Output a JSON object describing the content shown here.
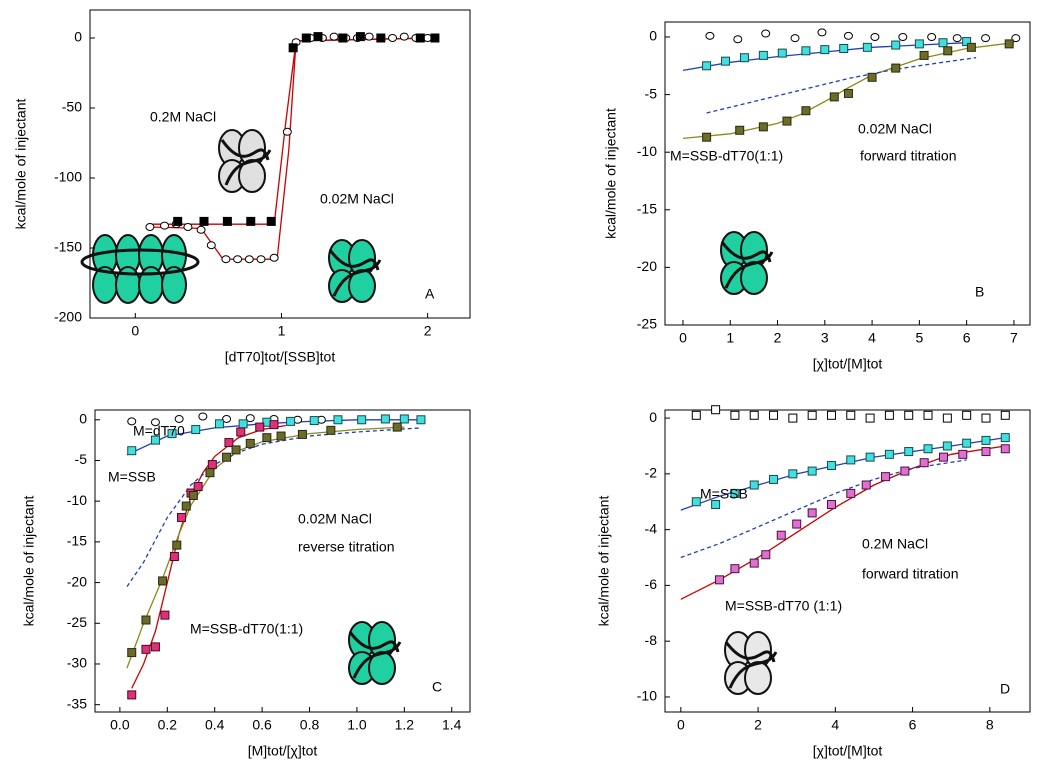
{
  "chart_data": [
    {
      "type": "scatter",
      "xlabel": "[dT70]tot/[SSB]tot",
      "ylabel": "kcal/mole of injectant",
      "xlim": [
        -0.31,
        2.29
      ],
      "ylim": [
        -200,
        20
      ],
      "xticks": [
        0,
        1,
        2
      ],
      "yticks": [
        0,
        -50,
        -100,
        -150,
        -200
      ],
      "annotations": [
        "0.2M NaCl",
        "0.02M NaCl",
        "A"
      ],
      "annotation_colors": [
        "#909090",
        "#2ed1b0",
        "#000000"
      ],
      "series": [
        {
          "style": "line",
          "color": "#cc0000",
          "x": [
            0.1,
            0.45,
            0.6,
            0.97,
            1.05,
            1.1,
            2.05
          ],
          "values": [
            -135,
            -136,
            -158,
            -158,
            -80,
            -2,
            0
          ]
        },
        {
          "style": "line",
          "color": "#cc0000",
          "x": [
            0.1,
            0.95,
            1.03,
            1.1,
            2.05
          ],
          "values": [
            -133,
            -133,
            -60,
            -2,
            0
          ]
        },
        {
          "style": "marker",
          "marker": "circle",
          "color": "#000000",
          "fill": "#ffffff",
          "x": [
            0.1,
            0.2,
            0.28,
            0.36,
            0.45,
            0.52,
            0.62,
            0.7,
            0.78,
            0.86,
            0.95,
            1.04,
            1.1,
            1.2,
            1.28,
            1.36,
            1.44,
            1.52,
            1.6,
            1.68,
            1.76,
            1.84,
            1.92,
            2.0
          ],
          "values": [
            -135,
            -134,
            -133,
            -135,
            -137,
            -148,
            -158,
            -158,
            -158,
            -158,
            -157,
            -67,
            -3,
            0,
            0,
            1,
            0,
            0,
            1,
            0,
            0,
            1,
            0,
            0
          ]
        },
        {
          "style": "marker",
          "marker": "square",
          "color": "#000000",
          "fill": "#000000",
          "x": [
            0.29,
            0.47,
            0.63,
            0.79,
            0.93,
            1.08,
            1.17,
            1.25,
            1.42,
            1.54,
            1.68,
            1.95,
            2.05
          ],
          "values": [
            -131,
            -131,
            -131,
            -131,
            -131,
            -7,
            0,
            1,
            0,
            1,
            0,
            0,
            0
          ]
        }
      ]
    },
    {
      "type": "scatter",
      "xlabel": "[χ]tot/[M]tot",
      "ylabel": "kcal/mole of injectant",
      "xlim": [
        -0.38,
        7.34
      ],
      "ylim": [
        -25,
        1.3
      ],
      "xticks": [
        0,
        1,
        2,
        3,
        4,
        5,
        6,
        7
      ],
      "yticks": [
        0,
        -5,
        -10,
        -15,
        -20,
        -25
      ],
      "annotations": [
        "0.02M NaCl",
        "forward titration",
        "M=SSB-dT70(1:1)",
        "B"
      ],
      "annotation_colors": [
        "#000000",
        "#000000",
        "#000000",
        "#000000"
      ],
      "series": [
        {
          "style": "line",
          "color": "#8a8a1a",
          "x": [
            0,
            1,
            2,
            2.5,
            3,
            3.5,
            4,
            5,
            6,
            7
          ],
          "values": [
            -8.8,
            -8.4,
            -7.5,
            -6.7,
            -5.6,
            -4.4,
            -3.3,
            -1.9,
            -1.0,
            -0.5
          ]
        },
        {
          "style": "line",
          "color": "#1f3fbf",
          "x": [
            0,
            1,
            2,
            3,
            4,
            5,
            6
          ],
          "values": [
            -2.9,
            -2.2,
            -1.7,
            -1.3,
            -0.9,
            -0.7,
            -0.5
          ]
        },
        {
          "style": "dashed",
          "color": "#1f3fbf",
          "x": [
            0.5,
            1.5,
            2.5,
            3.5,
            4.5,
            5.5,
            6.2
          ],
          "values": [
            -6.6,
            -5.6,
            -4.6,
            -3.6,
            -2.8,
            -2.2,
            -1.8
          ]
        },
        {
          "style": "marker",
          "marker": "circle",
          "color": "#000000",
          "fill": "#ffffff",
          "x": [
            0.57,
            1.16,
            1.75,
            2.37,
            2.94,
            3.5,
            4.06,
            4.65,
            5.26,
            5.8,
            6.4,
            7.04
          ],
          "values": [
            0.1,
            -0.2,
            0.3,
            -0.1,
            0.4,
            0.1,
            0,
            0,
            0,
            -0.1,
            -0.1,
            -0.1
          ]
        },
        {
          "style": "marker",
          "marker": "square",
          "color": "#1a4a4a",
          "fill": "#40e0e0",
          "x": [
            0.5,
            0.9,
            1.3,
            1.7,
            2.1,
            2.6,
            3.0,
            3.4,
            3.9,
            4.5,
            5.0,
            5.5,
            6.0
          ],
          "values": [
            -2.5,
            -2.1,
            -1.8,
            -1.6,
            -1.4,
            -1.2,
            -1.1,
            -1.0,
            -0.9,
            -0.7,
            -0.6,
            -0.5,
            -0.4
          ]
        },
        {
          "style": "marker",
          "marker": "square",
          "color": "#2a2a10",
          "fill": "#6b6b2a",
          "x": [
            0.5,
            1.2,
            1.7,
            2.2,
            2.6,
            3.2,
            3.5,
            4.0,
            4.5,
            5.1,
            5.6,
            6.1,
            6.9
          ],
          "values": [
            -8.7,
            -8.1,
            -7.8,
            -7.3,
            -6.4,
            -5.2,
            -4.9,
            -3.5,
            -2.7,
            -1.6,
            -1.2,
            -0.9,
            -0.6
          ]
        }
      ]
    },
    {
      "type": "scatter",
      "xlabel": "[M]tot/[χ]tot",
      "ylabel": "kcal/mole of injectant",
      "xlim": [
        -0.105,
        1.477
      ],
      "ylim": [
        -35.9,
        1.2
      ],
      "xticks": [
        {
          "value": 0,
          "label": "0.0"
        },
        0.2,
        0.4,
        0.6,
        0.8,
        {
          "value": 1,
          "label": "1.0"
        },
        1.2,
        1.4
      ],
      "yticks": [
        0,
        -5,
        -10,
        -15,
        -20,
        -25,
        -30,
        -35
      ],
      "annotations": [
        "M=dT70",
        "M=SSB",
        "0.02M NaCl",
        "reverse titration",
        "M=SSB-dT70(1:1)",
        "C"
      ],
      "annotation_colors": [
        "#000000",
        "#000000",
        "#000000",
        "#000000",
        "#000000",
        "#000000"
      ],
      "series": [
        {
          "style": "line",
          "color": "#cc0000",
          "x": [
            0.05,
            0.1,
            0.15,
            0.2,
            0.25,
            0.3,
            0.35,
            0.4,
            0.5,
            0.6,
            0.7
          ],
          "values": [
            -33,
            -30,
            -26,
            -20,
            -14,
            -9.5,
            -6.5,
            -4.5,
            -2.2,
            -1.2,
            -0.7
          ]
        },
        {
          "style": "line",
          "color": "#8a8a1a",
          "x": [
            0.03,
            0.1,
            0.18,
            0.25,
            0.3,
            0.4,
            0.5,
            0.6,
            0.8,
            1.0,
            1.2
          ],
          "values": [
            -30.5,
            -25,
            -19.5,
            -14,
            -10.5,
            -6,
            -3.8,
            -2.7,
            -1.7,
            -1.2,
            -0.9
          ]
        },
        {
          "style": "line",
          "color": "#1f3fbf",
          "x": [
            0.03,
            0.2,
            0.4,
            0.6,
            0.8,
            1.0,
            1.27
          ],
          "values": [
            -4.3,
            -2.0,
            -1.0,
            -0.5,
            -0.2,
            0,
            0
          ]
        },
        {
          "style": "dashed",
          "color": "#1f3fbf",
          "x": [
            0.03,
            0.1,
            0.2,
            0.3,
            0.4,
            0.5,
            0.6,
            0.8,
            1.0,
            1.27
          ],
          "values": [
            -20.5,
            -17.5,
            -12,
            -8,
            -5.5,
            -4,
            -3,
            -2,
            -1.5,
            -1
          ]
        },
        {
          "style": "marker",
          "marker": "circle",
          "color": "#000000",
          "fill": "#ffffff",
          "x": [
            0.05,
            0.15,
            0.25,
            0.35,
            0.45,
            0.55,
            0.65,
            0.75,
            0.85
          ],
          "values": [
            -0.2,
            -0.3,
            0.1,
            0.4,
            0.1,
            0.2,
            0.1,
            0,
            0
          ]
        },
        {
          "style": "marker",
          "marker": "square",
          "color": "#1a4a4a",
          "fill": "#40e0e0",
          "x": [
            0.05,
            0.15,
            0.22,
            0.32,
            0.42,
            0.52,
            0.62,
            0.72,
            0.82,
            0.92,
            1.02,
            1.12,
            1.2,
            1.27
          ],
          "values": [
            -3.8,
            -2.5,
            -1.7,
            -1.2,
            -0.5,
            -0.5,
            -0.3,
            -0.2,
            -0.1,
            0,
            0,
            0.1,
            0.1,
            0
          ]
        },
        {
          "style": "marker",
          "marker": "square",
          "color": "#4a0a20",
          "fill": "#e0307a",
          "x": [
            0.05,
            0.11,
            0.15,
            0.19,
            0.23,
            0.26,
            0.3,
            0.33,
            0.39,
            0.46,
            0.51,
            0.59,
            0.65
          ],
          "values": [
            -33.8,
            -28.2,
            -27.9,
            -24,
            -16.8,
            -12,
            -9,
            -8.2,
            -5.5,
            -2.8,
            -1.5,
            -0.9,
            -0.6
          ]
        },
        {
          "style": "marker",
          "marker": "square",
          "color": "#2a2a10",
          "fill": "#6b6b2a",
          "x": [
            0.05,
            0.11,
            0.18,
            0.24,
            0.28,
            0.31,
            0.38,
            0.45,
            0.49,
            0.55,
            0.62,
            0.68,
            0.77,
            0.89,
            1.17
          ],
          "values": [
            -28.6,
            -24.6,
            -19.8,
            -15.4,
            -10.6,
            -9.3,
            -6.5,
            -4.6,
            -3.7,
            -2.9,
            -2.2,
            -2,
            -1.8,
            -1.3,
            -0.9
          ]
        }
      ]
    },
    {
      "type": "scatter",
      "xlabel": "[χ]tot/[M]tot",
      "ylabel": "kcal/mole of injectant",
      "xlim": [
        -0.41,
        9.04
      ],
      "ylim": [
        -10.54,
        0.29
      ],
      "xticks": [
        0,
        2,
        4,
        6,
        8
      ],
      "yticks": [
        0,
        -2,
        -4,
        -6,
        -8,
        -10
      ],
      "annotations": [
        "M=SSB",
        "0.2M NaCl",
        "forward titration",
        "M=SSB-dT70 (1:1)",
        "D"
      ],
      "annotation_colors": [
        "#000000",
        "#000000",
        "#000000",
        "#000000",
        "#000000"
      ],
      "series": [
        {
          "style": "line",
          "color": "#cc0000",
          "x": [
            0,
            1,
            2,
            3,
            4,
            5,
            6,
            7,
            8.4
          ],
          "values": [
            -6.5,
            -5.8,
            -5.0,
            -4.1,
            -3.2,
            -2.4,
            -1.8,
            -1.3,
            -1.0
          ]
        },
        {
          "style": "line",
          "color": "#1f3fbf",
          "x": [
            0,
            1,
            2,
            3,
            4,
            5,
            6,
            7,
            8.4
          ],
          "values": [
            -3.3,
            -2.8,
            -2.4,
            -2.0,
            -1.7,
            -1.4,
            -1.2,
            -1.0,
            -0.7
          ]
        },
        {
          "style": "dashed",
          "color": "#1f3fbf",
          "x": [
            0,
            1,
            2,
            3,
            4,
            5,
            6,
            7.4
          ],
          "values": [
            -5.0,
            -4.5,
            -3.9,
            -3.3,
            -2.7,
            -2.2,
            -1.8,
            -1.5
          ]
        },
        {
          "style": "marker",
          "marker": "square",
          "color": "#000000",
          "fill": "#ffffff",
          "x": [
            0.4,
            0.9,
            1.4,
            1.9,
            2.4,
            2.9,
            3.4,
            3.9,
            4.4,
            4.9,
            5.4,
            5.9,
            6.4,
            6.9,
            7.4,
            7.9,
            8.4
          ],
          "values": [
            0.1,
            0.3,
            0.1,
            0.1,
            0.1,
            0,
            0.1,
            0.1,
            0.1,
            0,
            0.1,
            0.1,
            0.1,
            0,
            0.1,
            0,
            0.1
          ]
        },
        {
          "style": "marker",
          "marker": "square",
          "color": "#1a4a4a",
          "fill": "#40e0e0",
          "x": [
            0.4,
            0.9,
            1.4,
            1.9,
            2.4,
            2.9,
            3.4,
            3.9,
            4.4,
            4.9,
            5.4,
            5.9,
            6.4,
            6.9,
            7.4,
            7.9,
            8.4
          ],
          "values": [
            -3.0,
            -3.1,
            -2.7,
            -2.4,
            -2.2,
            -2.0,
            -1.9,
            -1.7,
            -1.5,
            -1.4,
            -1.3,
            -1.2,
            -1.1,
            -1.0,
            -0.9,
            -0.8,
            -0.7
          ]
        },
        {
          "style": "marker",
          "marker": "square",
          "color": "#4a1040",
          "fill": "#e070d0",
          "x": [
            1.0,
            1.4,
            1.9,
            2.2,
            2.6,
            3.0,
            3.4,
            3.9,
            4.4,
            4.8,
            5.3,
            5.8,
            6.3,
            6.8,
            7.3,
            7.9,
            8.4
          ],
          "values": [
            -5.8,
            -5.4,
            -5.2,
            -4.9,
            -4.2,
            -3.8,
            -3.4,
            -3.1,
            -2.7,
            -2.4,
            -2.1,
            -1.9,
            -1.6,
            -1.4,
            -1.3,
            -1.2,
            -1.1
          ]
        }
      ]
    }
  ]
}
